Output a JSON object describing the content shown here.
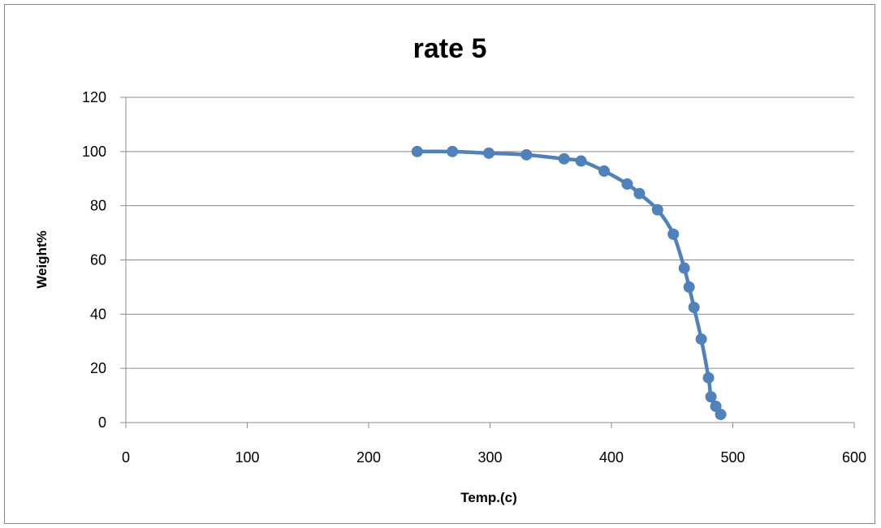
{
  "chart_data": {
    "type": "scatter",
    "title": "rate 5",
    "xlabel": "Temp.(c)",
    "ylabel": "Weight%",
    "xlim": [
      0,
      600
    ],
    "ylim": [
      0,
      120
    ],
    "x_ticks": [
      0,
      100,
      200,
      300,
      400,
      500,
      600
    ],
    "y_ticks": [
      0,
      20,
      40,
      60,
      80,
      100,
      120
    ],
    "grid": "horizontal",
    "legend": "none",
    "series": [
      {
        "color": "#4f81bd",
        "marker": "circle",
        "line": "smooth",
        "x": [
          240,
          269,
          299,
          330,
          361,
          375,
          394,
          413,
          423,
          438,
          451,
          460,
          464,
          468,
          474,
          480,
          482,
          486,
          490
        ],
        "y": [
          100,
          100,
          99.4,
          98.8,
          97.3,
          96.5,
          92.8,
          88,
          84.5,
          78.5,
          69.5,
          57,
          50,
          42.5,
          30.8,
          16.5,
          9.5,
          6,
          3
        ]
      }
    ]
  }
}
